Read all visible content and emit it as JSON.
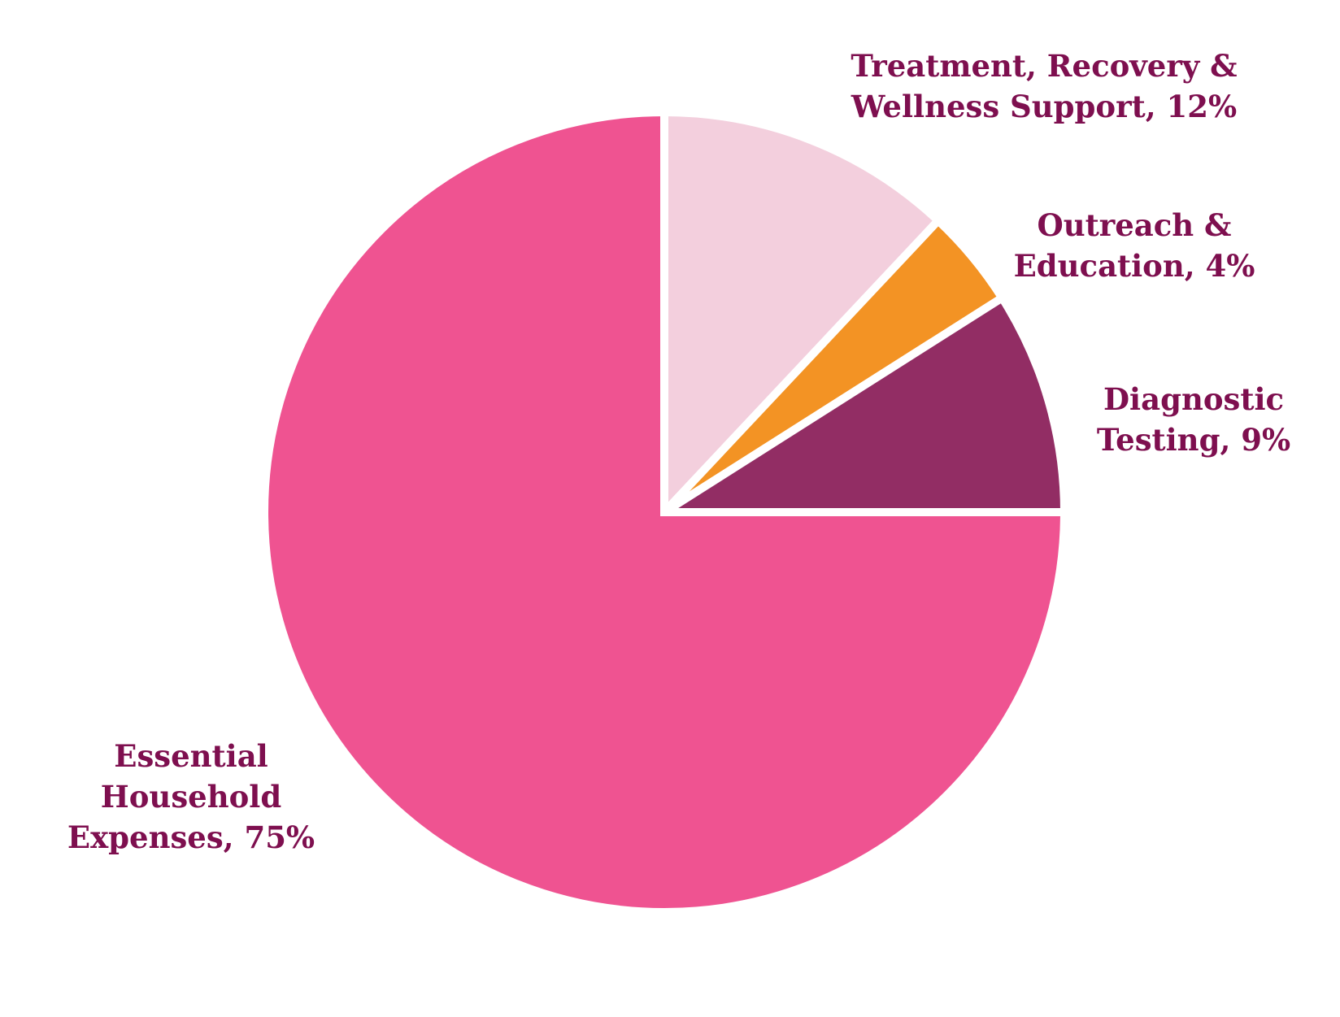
{
  "colors": {
    "label_text": "#7e0f4f",
    "slice_border": "#ffffff"
  },
  "chart_data": {
    "type": "pie",
    "start_angle_deg": 0,
    "direction": "clockwise",
    "slices": [
      {
        "key": "treatment",
        "label_lines": [
          "Treatment, Recovery &",
          "Wellness Support, 12%"
        ],
        "category": "Treatment, Recovery & Wellness Support",
        "value": 12,
        "color": "#f3cfdd"
      },
      {
        "key": "outreach",
        "label_lines": [
          "Outreach &",
          "Education, 4%"
        ],
        "category": "Outreach & Education",
        "value": 4,
        "color": "#f39324"
      },
      {
        "key": "diagnostic",
        "label_lines": [
          "Diagnostic",
          "Testing, 9%"
        ],
        "category": "Diagnostic Testing",
        "value": 9,
        "color": "#922d64"
      },
      {
        "key": "essential",
        "label_lines": [
          "Essential",
          "Household",
          "Expenses, 75%"
        ],
        "category": "Essential Household Expenses",
        "value": 75,
        "color": "#ef5391"
      }
    ]
  }
}
